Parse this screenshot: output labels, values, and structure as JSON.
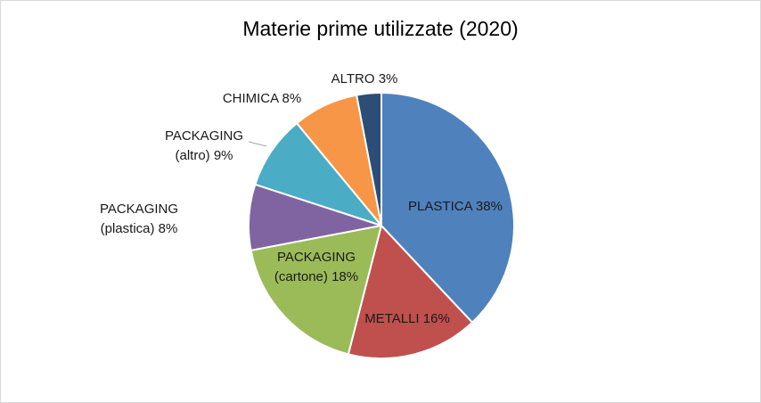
{
  "chart_data": {
    "type": "pie",
    "title": "Materie prime utilizzate (2020)",
    "categories": [
      "PLASTICA",
      "METALLI",
      "PACKAGING (cartone)",
      "PACKAGING (plastica)",
      "PACKAGING (altro)",
      "CHIMICA",
      "ALTRO"
    ],
    "values": [
      38,
      16,
      18,
      8,
      9,
      8,
      3
    ],
    "value_labels": [
      "38%",
      "16%",
      "18%",
      "8%",
      "9%",
      "8%",
      "3%"
    ],
    "colors": [
      "#4f81bd",
      "#c0504d",
      "#9bbb59",
      "#8064a2",
      "#4bacc6",
      "#f79646",
      "#2c4d75"
    ]
  }
}
